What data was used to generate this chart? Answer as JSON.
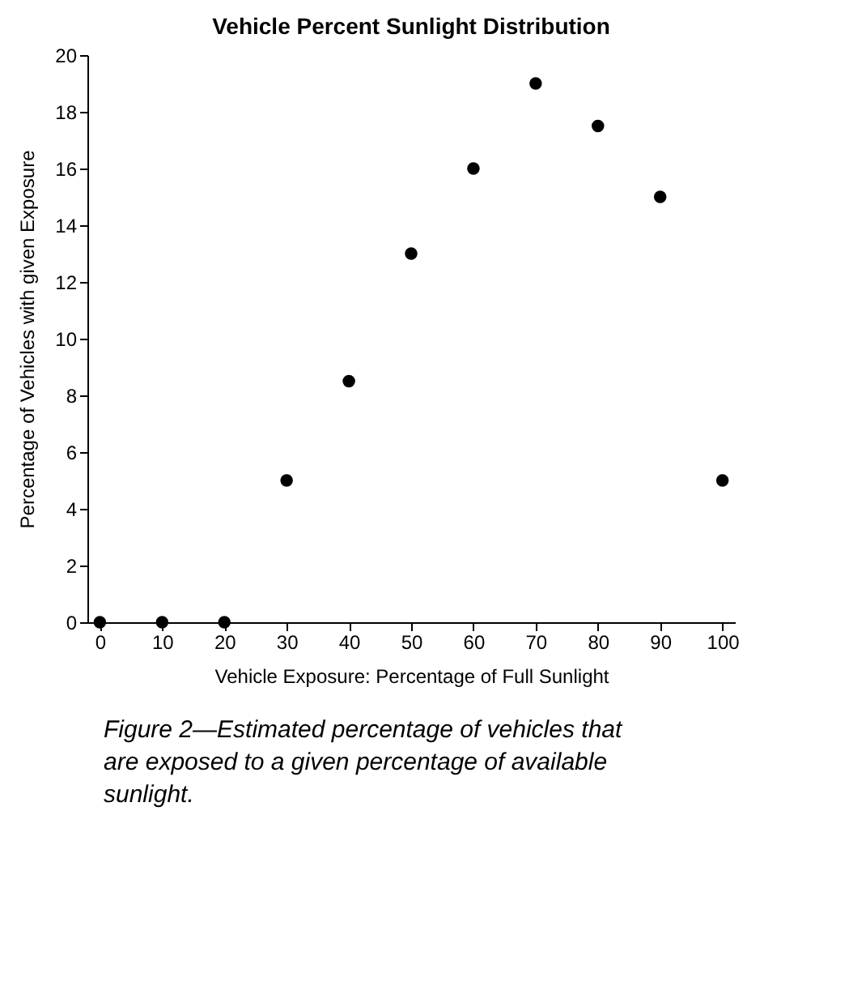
{
  "chart_data": {
    "type": "scatter",
    "title": "Vehicle Percent Sunlight Distribution",
    "xlabel": "Vehicle Exposure:  Percentage of Full Sunlight",
    "ylabel": "Percentage of Vehicles with given Exposure",
    "x": [
      0,
      10,
      20,
      30,
      40,
      50,
      60,
      70,
      80,
      90,
      100
    ],
    "series": [
      {
        "color": "#000000",
        "values": [
          0,
          0,
          0,
          5,
          8.5,
          13,
          16,
          19,
          17.5,
          15,
          5
        ]
      }
    ],
    "xlim": [
      -2,
      102
    ],
    "xticks": [
      0,
      10,
      20,
      30,
      40,
      50,
      60,
      70,
      80,
      90,
      100
    ],
    "ylim": [
      0,
      20
    ],
    "yticks": [
      0,
      2,
      4,
      6,
      8,
      10,
      12,
      14,
      16,
      18,
      20
    ],
    "marker": "circle",
    "grid": false,
    "legend": false,
    "annotations": [
      "Figure 2—Estimated percentage of vehicles that are exposed to a given percentage of available sunlight."
    ]
  }
}
